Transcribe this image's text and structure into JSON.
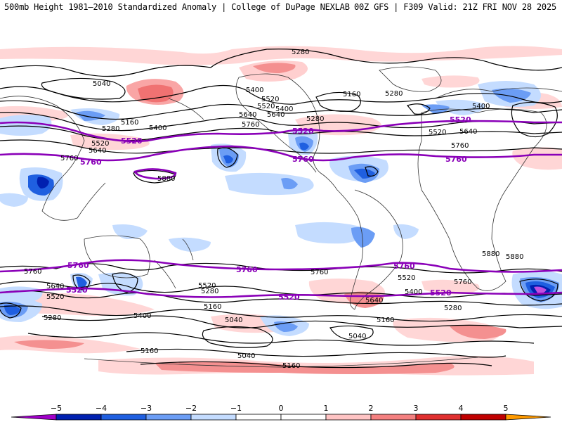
{
  "header": {
    "title_left": "500mb Height 1981–2010 Standardized Anomaly | College of DuPage NEXLAB",
    "title_right": "00Z GFS | F309 Valid: 21Z FRI NOV 28 2025"
  },
  "map": {
    "contour_labels": {
      "l5280_top": "5280",
      "l5040_a": "5040",
      "l5400_a": "5400",
      "l5520_a": "5520",
      "l5640_a": "5640",
      "l5760_a": "5760",
      "l5400_b": "5400",
      "l5160_a": "5160",
      "l5280_a": "5280",
      "l5520_b": "5520",
      "l5640_b": "5640",
      "l5280_b": "5280",
      "l5160_b": "5160",
      "l5280_c": "5280",
      "l5400_c": "5400",
      "l5400_d": "5400",
      "l5520_c": "5520",
      "l5640_c": "5640",
      "l5760_b": "5760",
      "l5880_a": "5880",
      "l5880_b": "5880",
      "l5880_c": "5880",
      "l5760_c": "5760",
      "l5640_d": "5640",
      "l5520_d": "5520",
      "l5760_d": "5760",
      "l5640_e": "5640",
      "l5520_e": "5520",
      "l5280_d": "5280",
      "l5400_e": "5400",
      "l5160_c": "5160",
      "l5280_e": "5280",
      "l5520_f": "5520",
      "l5040_b": "5040",
      "l5760_e": "5760",
      "l5520_g": "5520",
      "l5400_f": "5400",
      "l5640_f": "5640",
      "l5160_d": "5160",
      "l5040_c": "5040",
      "l5040_d": "5040",
      "l5160_e": "5160",
      "l5760_f": "5760",
      "l5280_f": "5280",
      "l5160_f": "5160"
    },
    "purple_labels": {
      "p5520_a": "5520",
      "p5760_a": "5760",
      "p5520_b": "5520",
      "p5760_b": "5760",
      "p5520_c": "5520",
      "p5760_c": "5760",
      "p5760_d": "5760",
      "p5520_d": "5520",
      "p5760_e": "5760",
      "p5520_e": "5520",
      "p5760_f": "5760",
      "p5520_f": "5520"
    }
  },
  "colorbar": {
    "ticks": [
      "−5",
      "−4",
      "−3",
      "−2",
      "−1",
      "0",
      "1",
      "2",
      "3",
      "4",
      "5"
    ],
    "colors": [
      "#a000c8",
      "#0020b0",
      "#1f5fe0",
      "#6b9df5",
      "#c4dcff",
      "#ffffff",
      "#ffffff",
      "#ffc4c4",
      "#f48080",
      "#e03030",
      "#c00000",
      "#ff9a00"
    ]
  }
}
